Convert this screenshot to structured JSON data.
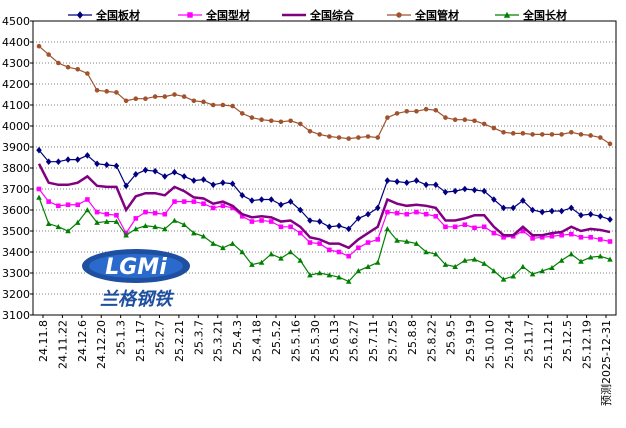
{
  "chart_data": {
    "type": "line",
    "ylim": [
      3100,
      4500
    ],
    "yticks": [
      3100,
      3200,
      3300,
      3400,
      3500,
      3600,
      3700,
      3800,
      3900,
      4000,
      4100,
      4200,
      4300,
      4400,
      4500
    ],
    "xtick_labels": [
      "24.11.8",
      "24.11.22",
      "24.12.6",
      "24.12.20",
      "25.1.3",
      "25.1.17",
      "25.2.7",
      "25.2.21",
      "25.3.7",
      "25.3.21",
      "25.4.3",
      "25.4.18",
      "25.5.2",
      "25.5.16",
      "25.5.30",
      "25.6.13",
      "25.6.27",
      "25.7.11",
      "25.7.25",
      "25.8.8",
      "25.8.22",
      "25.9.5",
      "25.9.19",
      "25.10.10",
      "25.10.24",
      "25.11.7",
      "25.11.21",
      "25.12.5",
      "25.12.19",
      "预测2025-12-31"
    ],
    "grid": true,
    "legend_position": "top",
    "series": [
      {
        "name": "全国板材",
        "color": "#000080",
        "marker": "diamond",
        "values": [
          3885,
          3830,
          3830,
          3840,
          3840,
          3860,
          3820,
          3815,
          3810,
          3715,
          3770,
          3790,
          3785,
          3760,
          3780,
          3760,
          3740,
          3745,
          3720,
          3730,
          3725,
          3670,
          3645,
          3650,
          3650,
          3625,
          3640,
          3600,
          3550,
          3545,
          3520,
          3525,
          3510,
          3560,
          3580,
          3610,
          3740,
          3735,
          3730,
          3740,
          3720,
          3720,
          3685,
          3690,
          3700,
          3695,
          3690,
          3650,
          3610,
          3610,
          3645,
          3600,
          3590,
          3595,
          3595,
          3610,
          3575,
          3580,
          3570,
          3555
        ]
      },
      {
        "name": "全国型材",
        "color": "#FF00FF",
        "marker": "square",
        "values": [
          3700,
          3640,
          3620,
          3625,
          3625,
          3650,
          3590,
          3580,
          3575,
          3490,
          3560,
          3590,
          3585,
          3580,
          3640,
          3640,
          3640,
          3630,
          3610,
          3620,
          3610,
          3570,
          3545,
          3550,
          3545,
          3520,
          3520,
          3490,
          3445,
          3440,
          3410,
          3400,
          3380,
          3420,
          3445,
          3460,
          3590,
          3585,
          3580,
          3590,
          3580,
          3570,
          3520,
          3520,
          3530,
          3515,
          3520,
          3490,
          3470,
          3475,
          3500,
          3465,
          3470,
          3475,
          3480,
          3485,
          3470,
          3470,
          3460,
          3450
        ]
      },
      {
        "name": "全国综合",
        "color": "#800080",
        "marker": "none",
        "values": [
          3820,
          3730,
          3720,
          3720,
          3730,
          3760,
          3715,
          3710,
          3710,
          3600,
          3665,
          3680,
          3680,
          3670,
          3710,
          3690,
          3660,
          3655,
          3630,
          3640,
          3620,
          3580,
          3565,
          3570,
          3565,
          3545,
          3550,
          3520,
          3470,
          3460,
          3440,
          3440,
          3420,
          3460,
          3490,
          3520,
          3650,
          3630,
          3620,
          3625,
          3620,
          3610,
          3550,
          3550,
          3560,
          3575,
          3575,
          3520,
          3480,
          3480,
          3520,
          3480,
          3480,
          3490,
          3495,
          3520,
          3500,
          3510,
          3505,
          3495
        ]
      },
      {
        "name": "全国管材",
        "color": "#A0522D",
        "marker": "circle",
        "values": [
          4380,
          4340,
          4300,
          4280,
          4270,
          4250,
          4170,
          4165,
          4160,
          4120,
          4130,
          4130,
          4140,
          4140,
          4150,
          4140,
          4120,
          4115,
          4100,
          4100,
          4095,
          4060,
          4040,
          4030,
          4025,
          4020,
          4025,
          4010,
          3975,
          3960,
          3950,
          3945,
          3940,
          3945,
          3950,
          3945,
          4040,
          4060,
          4070,
          4070,
          4080,
          4075,
          4040,
          4030,
          4030,
          4025,
          4010,
          3990,
          3970,
          3965,
          3965,
          3960,
          3960,
          3960,
          3960,
          3970,
          3960,
          3955,
          3945,
          3915
        ]
      },
      {
        "name": "全国长材",
        "color": "#008000",
        "marker": "triangle",
        "values": [
          3660,
          3535,
          3520,
          3500,
          3540,
          3600,
          3540,
          3545,
          3545,
          3480,
          3510,
          3525,
          3520,
          3510,
          3550,
          3530,
          3490,
          3475,
          3440,
          3420,
          3440,
          3400,
          3340,
          3350,
          3390,
          3370,
          3400,
          3360,
          3290,
          3300,
          3290,
          3280,
          3260,
          3310,
          3330,
          3350,
          3510,
          3455,
          3450,
          3440,
          3400,
          3390,
          3340,
          3330,
          3360,
          3365,
          3345,
          3310,
          3270,
          3285,
          3330,
          3295,
          3310,
          3325,
          3360,
          3390,
          3355,
          3375,
          3380,
          3365
        ]
      }
    ]
  },
  "logo": {
    "text": "LGMi",
    "subtitle": "兰格钢铁"
  }
}
